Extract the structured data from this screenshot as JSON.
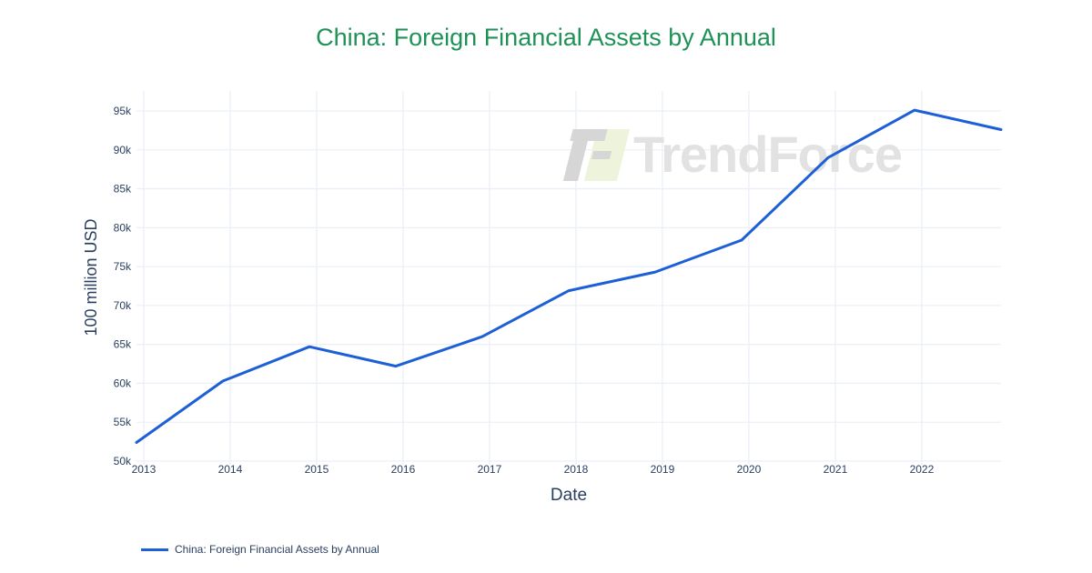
{
  "title": {
    "text": "China: Foreign Financial Assets by Annual"
  },
  "watermark": {
    "brand": "TrendForce"
  },
  "axes": {
    "x": {
      "label": "Date",
      "tick_labels": [
        "2013",
        "2014",
        "2015",
        "2016",
        "2017",
        "2018",
        "2019",
        "2020",
        "2021",
        "2022"
      ]
    },
    "y": {
      "label": "100 million USD",
      "ticks": [
        {
          "label": "50k",
          "value": 50000
        },
        {
          "label": "55k",
          "value": 55000
        },
        {
          "label": "60k",
          "value": 60000
        },
        {
          "label": "65k",
          "value": 65000
        },
        {
          "label": "70k",
          "value": 70000
        },
        {
          "label": "75k",
          "value": 75000
        },
        {
          "label": "80k",
          "value": 80000
        },
        {
          "label": "85k",
          "value": 85000
        },
        {
          "label": "90k",
          "value": 90000
        },
        {
          "label": "95k",
          "value": 95000
        }
      ]
    }
  },
  "legend": {
    "items": [
      {
        "label": "China: Foreign Financial Assets by Annual",
        "color": "#1c5fd6"
      }
    ]
  },
  "colors": {
    "title_green": "#1e9157",
    "line_blue": "#1c5fd6",
    "axis_text": "#2a3f5f",
    "gridline": "#ebf0f8",
    "watermark_gray": "#e2e2e2"
  },
  "chart_data": {
    "type": "line",
    "title": "China: Foreign Financial Assets by Annual",
    "xlabel": "Date",
    "ylabel": "100 million USD",
    "x": [
      "2012-12",
      "2013-12",
      "2014-12",
      "2015-12",
      "2016-12",
      "2017-12",
      "2018-12",
      "2019-12",
      "2020-12",
      "2021-12",
      "2022-12"
    ],
    "series": [
      {
        "name": "China: Foreign Financial Assets by Annual",
        "color": "#1c5fd6",
        "values": [
          52400,
          60300,
          64700,
          62200,
          66000,
          71900,
          74300,
          78400,
          89000,
          95100,
          92600
        ]
      }
    ],
    "x_tick_labels": [
      "2013",
      "2014",
      "2015",
      "2016",
      "2017",
      "2018",
      "2019",
      "2020",
      "2021",
      "2022"
    ],
    "y_tick_values": [
      50000,
      55000,
      60000,
      65000,
      70000,
      75000,
      80000,
      85000,
      90000,
      95000
    ],
    "y_tick_labels": [
      "50k",
      "55k",
      "60k",
      "65k",
      "70k",
      "75k",
      "80k",
      "85k",
      "90k",
      "95k"
    ],
    "ylim": [
      50000,
      97500
    ],
    "grid": true,
    "legend_position": "bottom-left"
  }
}
